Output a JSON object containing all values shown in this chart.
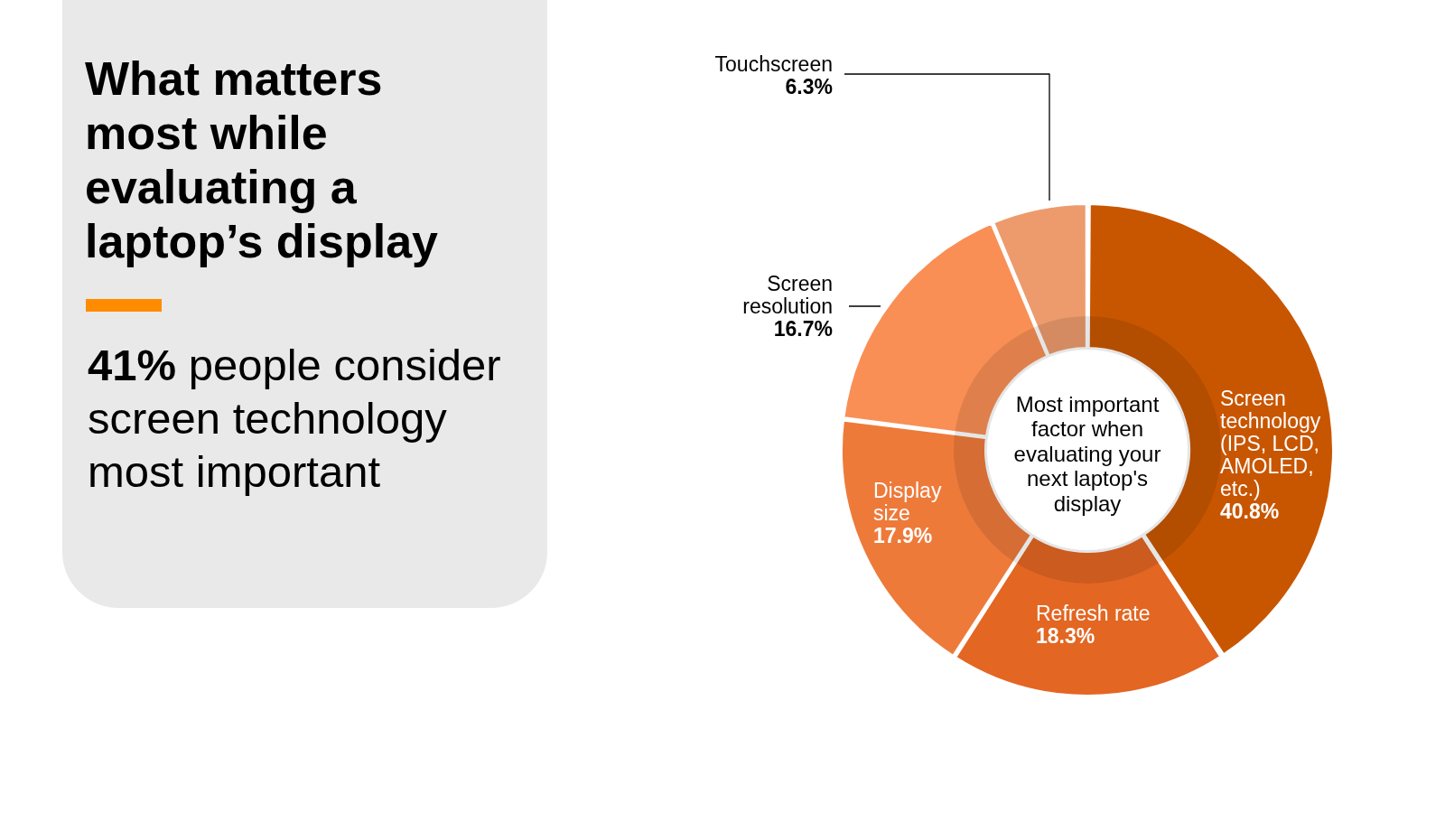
{
  "chart_data": {
    "type": "donut",
    "title": "What matters most while evaluating a laptop’s display",
    "subtitle": "41% people consider screen technology most important",
    "categories": [
      "Screen technology (IPS, LCD, AMOLED, etc.)",
      "Refresh rate",
      "Display size",
      "Screen resolution",
      "Touchscreen"
    ],
    "values": [
      40.8,
      18.3,
      17.9,
      16.7,
      6.3
    ],
    "colors": [
      "#c85600",
      "#e36622",
      "#ee7a3a",
      "#f98f55",
      "#ed9b6d"
    ],
    "value_labels": [
      "40.8%",
      "18.3%",
      "17.9%",
      "16.7%",
      "6.3%"
    ],
    "annotations": [
      "Most important factor when evaluating your next laptop's display"
    ]
  }
}
